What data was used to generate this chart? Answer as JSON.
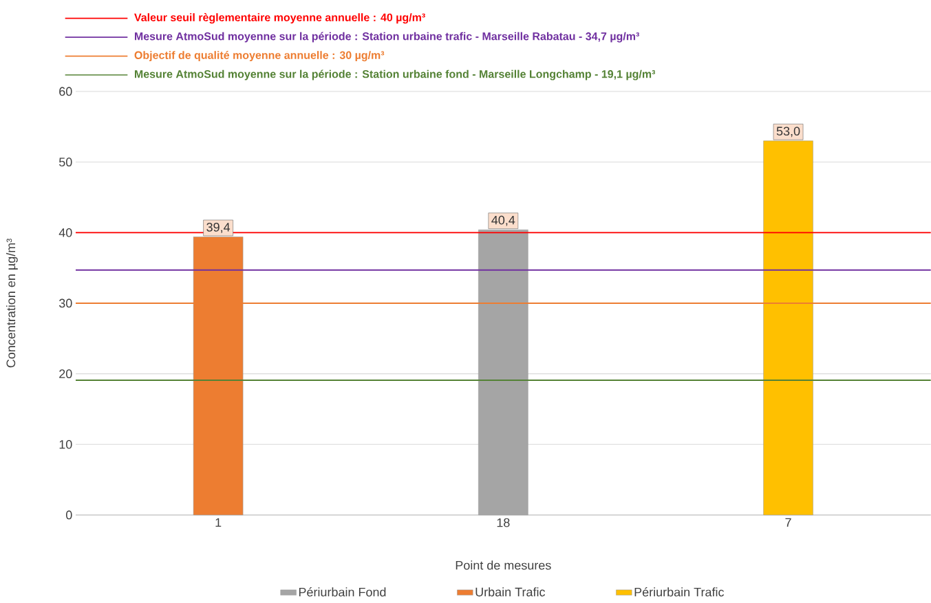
{
  "chart_data": {
    "type": "bar",
    "xlabel": "Point de mesures",
    "ylabel": "Concentration en µg/m³",
    "categories": [
      "1",
      "18",
      "7"
    ],
    "series": [
      {
        "name": "Périurbain Fond",
        "color": "#a5a5a5",
        "values": [
          null,
          40.4,
          null
        ],
        "value_labels": [
          null,
          "40,4",
          null
        ]
      },
      {
        "name": "Urbain Trafic",
        "color": "#ed7d31",
        "values": [
          39.4,
          null,
          null
        ],
        "value_labels": [
          "39,4",
          null,
          null
        ]
      },
      {
        "name": "Périurbain Trafic",
        "color": "#ffc000",
        "values": [
          null,
          null,
          53.0
        ],
        "value_labels": [
          null,
          null,
          "53,0"
        ]
      }
    ],
    "ylim": [
      0,
      60
    ],
    "yticks": [
      0,
      10,
      20,
      30,
      40,
      50,
      60
    ],
    "grid": "y",
    "legend": "bottom",
    "ref_lines": [
      {
        "axis": "y",
        "value": 40,
        "label": "Valeur seuil règlementaire moyenne annuelle : 40 µg/m³",
        "color": "#ff0000"
      },
      {
        "axis": "y",
        "value": 34.7,
        "label": "Mesure AtmoSud moyenne sur la période : Station urbaine trafic - Marseille Rabatau - 34,7 µg/m³",
        "color": "#7030a0"
      },
      {
        "axis": "y",
        "value": 30,
        "label": "Objectif de qualité moyenne annuelle : 30 µg/m³",
        "color": "#ed7d31"
      },
      {
        "axis": "y",
        "value": 19.1,
        "label": "Mesure AtmoSud moyenne sur la période : Station urbaine fond - Marseille Longchamp - 19,1 µg/m³",
        "color": "#548235"
      }
    ]
  }
}
